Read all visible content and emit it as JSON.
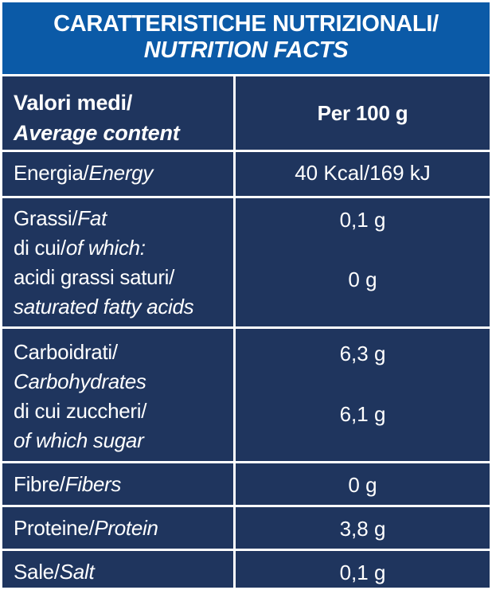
{
  "title": {
    "line1": "CARATTERISTICHE NUTRIZIONALI/",
    "line2": "NUTRITION FACTS"
  },
  "colors": {
    "header_bg": "#0b5aa7",
    "table_bg": "#1f355e",
    "grid_lines": "#ffffff",
    "text": "#ffffff"
  },
  "table_header": {
    "col1_line1": "Valori medi/",
    "col1_line2": "Average content",
    "col2": "Per 100 g"
  },
  "rows": [
    {
      "label_it": "Energia/",
      "label_en": "Energy",
      "value": "40 Kcal/169 kJ"
    },
    {
      "label_it": "Grassi/",
      "label_en": "Fat",
      "sub_it": "di cui/",
      "sub_en": "of which:",
      "sub2_it": "acidi grassi saturi/",
      "sub2_en": "saturated fatty acids",
      "value": "0,1 g",
      "sub_value": "0 g"
    },
    {
      "label_it": "Carboidrati/",
      "label_en": "Carbohydrates",
      "sub_it": "di cui zuccheri/",
      "sub_en": "of which sugar",
      "value": "6,3 g",
      "sub_value": "6,1 g"
    },
    {
      "label_it": "Fibre/",
      "label_en": "Fibers",
      "value": "0 g"
    },
    {
      "label_it": "Proteine/",
      "label_en": "Protein",
      "value": "3,8 g"
    },
    {
      "label_it": "Sale/",
      "label_en": "Salt",
      "value": "0,1 g"
    }
  ]
}
